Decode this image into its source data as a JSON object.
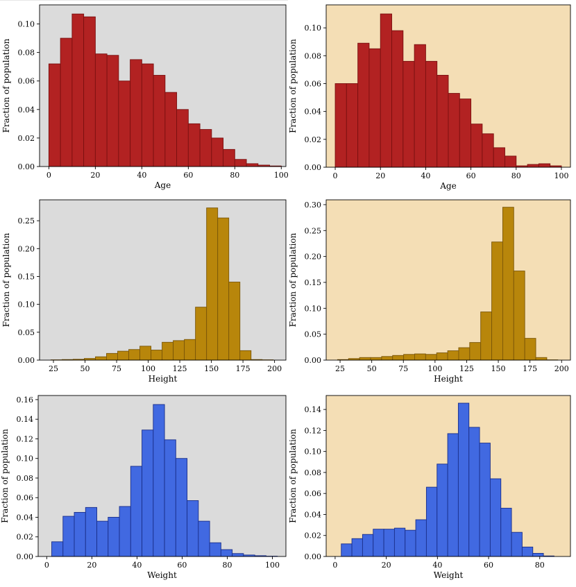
{
  "ylabel_text": "Fraction of population",
  "colors": {
    "panel_gray": "#dbdbdb",
    "panel_tan": "#f4deb5",
    "age_fill": "#b22222",
    "age_edge": "#7a1010",
    "height_fill": "#b8860b",
    "height_edge": "#7a5608",
    "weight_fill": "#4169e1",
    "weight_edge": "#1a2f8a"
  },
  "chart_data": [
    {
      "type": "bar",
      "id": "age-left",
      "xlabel": "Age",
      "ylabel": "Fraction of population",
      "background": "panel_gray",
      "fill": "age_fill",
      "edge": "age_edge",
      "xlim": [
        -4,
        102
      ],
      "ylim": [
        0,
        0.1134
      ],
      "xticks": [
        0,
        20,
        40,
        60,
        80,
        100
      ],
      "xtick_labels": [
        "0",
        "20",
        "40",
        "60",
        "80",
        "100"
      ],
      "yticks": [
        0,
        0.02,
        0.04,
        0.06,
        0.08,
        0.1
      ],
      "ytick_labels": [
        "0.00",
        "0.02",
        "0.04",
        "0.06",
        "0.08",
        "0.10"
      ],
      "bin_start": 0,
      "bin_width": 5,
      "values": [
        0.072,
        0.09,
        0.107,
        0.105,
        0.079,
        0.078,
        0.06,
        0.075,
        0.072,
        0.064,
        0.052,
        0.04,
        0.03,
        0.026,
        0.02,
        0.012,
        0.005,
        0.002,
        0.001,
        0.0004
      ]
    },
    {
      "type": "bar",
      "id": "age-right",
      "xlabel": "Age",
      "ylabel": "Fraction of population",
      "background": "panel_tan",
      "fill": "age_fill",
      "edge": "age_edge",
      "xlim": [
        -4,
        104
      ],
      "ylim": [
        0,
        0.1165
      ],
      "xticks": [
        0,
        20,
        40,
        60,
        80,
        100
      ],
      "xtick_labels": [
        "0",
        "20",
        "40",
        "60",
        "80",
        "100"
      ],
      "yticks": [
        0,
        0.02,
        0.04,
        0.06,
        0.08,
        0.1
      ],
      "ytick_labels": [
        "0.00",
        "0.02",
        "0.04",
        "0.06",
        "0.08",
        "0.10"
      ],
      "bin_start": 0,
      "bin_width": 5,
      "values": [
        0.06,
        0.06,
        0.089,
        0.085,
        0.11,
        0.098,
        0.076,
        0.088,
        0.076,
        0.066,
        0.053,
        0.049,
        0.031,
        0.024,
        0.014,
        0.008,
        0.001,
        0.002,
        0.0025,
        0.001
      ]
    },
    {
      "type": "bar",
      "id": "height-left",
      "xlabel": "Height",
      "ylabel": "Fraction of population",
      "background": "panel_gray",
      "fill": "height_fill",
      "edge": "height_edge",
      "xlim": [
        14,
        209
      ],
      "ylim": [
        0,
        0.2875
      ],
      "xticks": [
        25,
        50,
        75,
        100,
        125,
        150,
        175,
        200
      ],
      "xtick_labels": [
        "25",
        "50",
        "75",
        "100",
        "125",
        "150",
        "175",
        "200"
      ],
      "yticks": [
        0,
        0.05,
        0.1,
        0.15,
        0.2,
        0.25
      ],
      "ytick_labels": [
        "0.00",
        "0.05",
        "0.10",
        "0.15",
        "0.20",
        "0.25"
      ],
      "bin_start": 23,
      "bin_width": 8.8,
      "values": [
        0.0005,
        0.001,
        0.0015,
        0.003,
        0.006,
        0.012,
        0.016,
        0.019,
        0.025,
        0.018,
        0.032,
        0.035,
        0.037,
        0.095,
        0.273,
        0.255,
        0.14,
        0.017,
        0.001,
        0.0005
      ]
    },
    {
      "type": "bar",
      "id": "height-right",
      "xlabel": "Height",
      "ylabel": "Fraction of population",
      "background": "panel_tan",
      "fill": "height_fill",
      "edge": "height_edge",
      "xlim": [
        14,
        207
      ],
      "ylim": [
        0,
        0.3093
      ],
      "xticks": [
        25,
        50,
        75,
        100,
        125,
        150,
        175,
        200
      ],
      "xtick_labels": [
        "25",
        "50",
        "75",
        "100",
        "125",
        "150",
        "175",
        "200"
      ],
      "yticks": [
        0,
        0.05,
        0.1,
        0.15,
        0.2,
        0.25,
        0.3
      ],
      "ytick_labels": [
        "0.00",
        "0.05",
        "0.10",
        "0.15",
        "0.20",
        "0.25",
        "0.30"
      ],
      "bin_start": 23,
      "bin_width": 8.7,
      "values": [
        0.001,
        0.003,
        0.005,
        0.005,
        0.007,
        0.009,
        0.011,
        0.012,
        0.011,
        0.014,
        0.018,
        0.024,
        0.034,
        0.093,
        0.228,
        0.295,
        0.172,
        0.042,
        0.005,
        0.0005
      ]
    },
    {
      "type": "bar",
      "id": "weight-left",
      "xlabel": "Weight",
      "ylabel": "Fraction of population",
      "background": "panel_gray",
      "fill": "weight_fill",
      "edge": "weight_edge",
      "xlim": [
        -3.8,
        106
      ],
      "ylim": [
        0,
        0.1642
      ],
      "xticks": [
        0,
        20,
        40,
        60,
        80,
        100
      ],
      "xtick_labels": [
        "0",
        "20",
        "40",
        "60",
        "80",
        "100"
      ],
      "yticks": [
        0,
        0.02,
        0.04,
        0.06,
        0.08,
        0.1,
        0.12,
        0.14,
        0.16
      ],
      "ytick_labels": [
        "0.00",
        "0.02",
        "0.04",
        "0.06",
        "0.08",
        "0.10",
        "0.12",
        "0.14",
        "0.16"
      ],
      "bin_start": 2.2,
      "bin_width": 5.0,
      "values": [
        0.015,
        0.041,
        0.045,
        0.05,
        0.036,
        0.04,
        0.051,
        0.092,
        0.129,
        0.155,
        0.119,
        0.1,
        0.057,
        0.036,
        0.014,
        0.007,
        0.003,
        0.0015,
        0.0008,
        0.0003
      ]
    },
    {
      "type": "bar",
      "id": "weight-right",
      "xlabel": "Weight",
      "ylabel": "Fraction of population",
      "background": "panel_tan",
      "fill": "weight_fill",
      "edge": "weight_edge",
      "xlim": [
        -3.5,
        92
      ],
      "ylim": [
        0,
        0.1533
      ],
      "xticks": [
        0,
        20,
        40,
        60,
        80
      ],
      "xtick_labels": [
        "0",
        "20",
        "40",
        "60",
        "80"
      ],
      "yticks": [
        0,
        0.02,
        0.04,
        0.06,
        0.08,
        0.1,
        0.12,
        0.14
      ],
      "ytick_labels": [
        "0.00",
        "0.02",
        "0.04",
        "0.06",
        "0.08",
        "0.10",
        "0.12",
        "0.14"
      ],
      "bin_start": 2.4,
      "bin_width": 4.16,
      "values": [
        0.012,
        0.017,
        0.021,
        0.026,
        0.026,
        0.027,
        0.025,
        0.035,
        0.066,
        0.088,
        0.117,
        0.146,
        0.123,
        0.108,
        0.074,
        0.046,
        0.023,
        0.009,
        0.003,
        0.0005
      ]
    }
  ]
}
